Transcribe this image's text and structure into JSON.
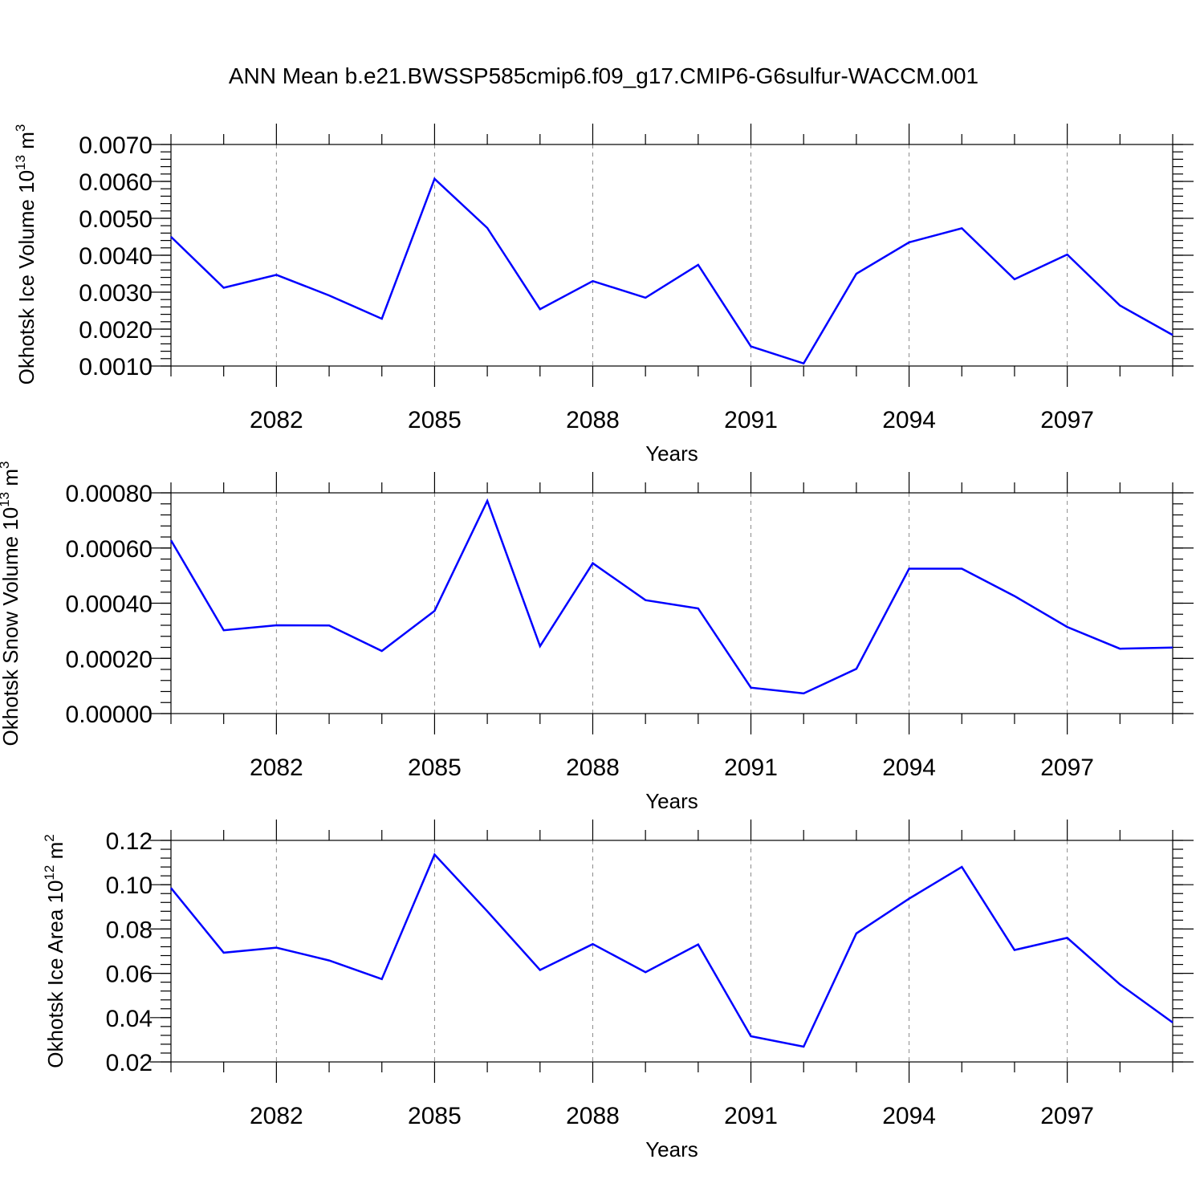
{
  "title": "ANN Mean b.e21.BWSSP585cmip6.f09_g17.CMIP6-G6sulfur-WACCM.001",
  "line_color": "#0000ff",
  "chart_data": [
    {
      "type": "line",
      "ylabel": {
        "text": "Okhotsk Ice Volume 10",
        "sup": "13",
        "unit": "m",
        "unit_sup": "3"
      },
      "xlabel": "Years",
      "xlim": [
        2080,
        2099
      ],
      "xticks": [
        2082,
        2085,
        2088,
        2091,
        2094,
        2097
      ],
      "xtick_labels": [
        "2082",
        "2085",
        "2088",
        "2091",
        "2094",
        "2097"
      ],
      "ylim": [
        0.001,
        0.007
      ],
      "yticks": [
        0.001,
        0.002,
        0.003,
        0.004,
        0.005,
        0.006,
        0.007
      ],
      "ytick_labels": [
        "0.0010",
        "0.0020",
        "0.0030",
        "0.0040",
        "0.0050",
        "0.0060",
        "0.0070"
      ],
      "yminor_step": 0.0002,
      "grid": "vertical dashed at major x ticks",
      "x": [
        2080,
        2081,
        2082,
        2083,
        2084,
        2085,
        2086,
        2087,
        2088,
        2089,
        2090,
        2091,
        2092,
        2093,
        2094,
        2095,
        2096,
        2097,
        2098,
        2099
      ],
      "y": [
        0.0045,
        0.00312,
        0.00347,
        0.00291,
        0.00228,
        0.00607,
        0.00474,
        0.00254,
        0.0033,
        0.00285,
        0.00374,
        0.00153,
        0.00107,
        0.0035,
        0.00435,
        0.00473,
        0.00335,
        0.00402,
        0.00264,
        0.00184
      ]
    },
    {
      "type": "line",
      "ylabel": {
        "text": "Okhotsk Snow Volume 10",
        "sup": "13",
        "unit": "m",
        "unit_sup": "3"
      },
      "xlabel": "Years",
      "xlim": [
        2080,
        2099
      ],
      "xticks": [
        2082,
        2085,
        2088,
        2091,
        2094,
        2097
      ],
      "xtick_labels": [
        "2082",
        "2085",
        "2088",
        "2091",
        "2094",
        "2097"
      ],
      "ylim": [
        0.0,
        0.0008
      ],
      "yticks": [
        0.0,
        0.0002,
        0.0004,
        0.0006,
        0.0008
      ],
      "ytick_labels": [
        "0.00000",
        "0.00020",
        "0.00040",
        "0.00060",
        "0.00080"
      ],
      "yminor_step": 4e-05,
      "grid": "vertical dashed at major x ticks",
      "x": [
        2080,
        2081,
        2082,
        2083,
        2084,
        2085,
        2086,
        2087,
        2088,
        2089,
        2090,
        2091,
        2092,
        2093,
        2094,
        2095,
        2096,
        2097,
        2098,
        2099
      ],
      "y": [
        0.000628,
        0.000302,
        0.00032,
        0.000319,
        0.000227,
        0.000372,
        0.000771,
        0.000244,
        0.000545,
        0.000411,
        0.000381,
        9.4e-05,
        7.3e-05,
        0.000162,
        0.000525,
        0.000525,
        0.000426,
        0.000314,
        0.000235,
        0.000239
      ]
    },
    {
      "type": "line",
      "ylabel": {
        "text": "Okhotsk Ice Area 10",
        "sup": "12",
        "unit": "m",
        "unit_sup": "2"
      },
      "xlabel": "Years",
      "xlim": [
        2080,
        2099
      ],
      "xticks": [
        2082,
        2085,
        2088,
        2091,
        2094,
        2097
      ],
      "xtick_labels": [
        "2082",
        "2085",
        "2088",
        "2091",
        "2094",
        "2097"
      ],
      "ylim": [
        0.02,
        0.12
      ],
      "yticks": [
        0.02,
        0.04,
        0.06,
        0.08,
        0.1,
        0.12
      ],
      "ytick_labels": [
        "0.02",
        "0.04",
        "0.06",
        "0.08",
        "0.10",
        "0.12"
      ],
      "yminor_step": 0.004,
      "grid": "vertical dashed at major x ticks",
      "x": [
        2080,
        2081,
        2082,
        2083,
        2084,
        2085,
        2086,
        2087,
        2088,
        2089,
        2090,
        2091,
        2092,
        2093,
        2094,
        2095,
        2096,
        2097,
        2098,
        2099
      ],
      "y": [
        0.0985,
        0.0693,
        0.0716,
        0.0658,
        0.0574,
        0.1136,
        0.088,
        0.0615,
        0.0732,
        0.0605,
        0.073,
        0.0316,
        0.0269,
        0.078,
        0.0937,
        0.108,
        0.0705,
        0.076,
        0.055,
        0.0378
      ]
    }
  ]
}
